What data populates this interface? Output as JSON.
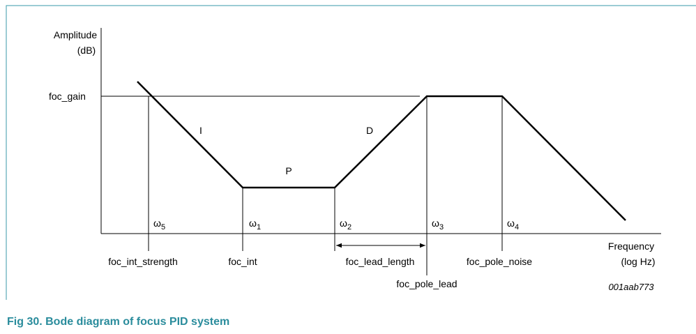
{
  "axis": {
    "y_label": [
      "Amplitude",
      "(dB)"
    ],
    "x_label": [
      "Frequency",
      "(log Hz)"
    ],
    "gain_label": "foc_gain"
  },
  "regions": {
    "i": "I",
    "p": "P",
    "d": "D"
  },
  "omegas": [
    {
      "symbol": "ω",
      "sub": "5"
    },
    {
      "symbol": "ω",
      "sub": "1"
    },
    {
      "symbol": "ω",
      "sub": "2"
    },
    {
      "symbol": "ω",
      "sub": "3"
    },
    {
      "symbol": "ω",
      "sub": "4"
    }
  ],
  "parameters": [
    "foc_int_strength",
    "foc_int",
    "foc_lead_length",
    "foc_pole_lead",
    "foc_pole_noise"
  ],
  "figure_id": "001aab773",
  "caption": "Fig 30.  Bode diagram of focus PID system"
}
